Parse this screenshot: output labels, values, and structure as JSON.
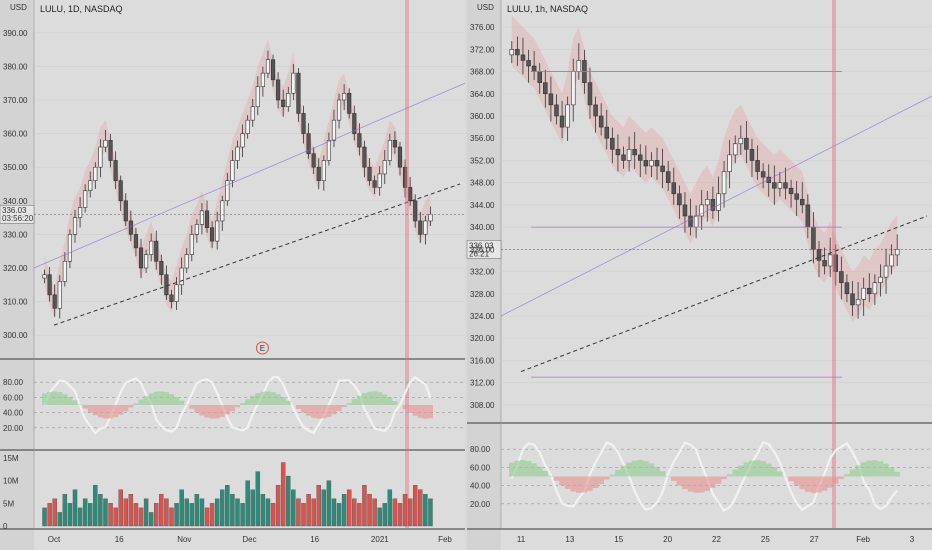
{
  "panes": [
    {
      "id": "left",
      "title": "LULU, 1D, NASDAQ",
      "currency": "USD",
      "price_tag": "336.03",
      "countdown": "03:56:20",
      "price_axis": {
        "min": 295,
        "max": 395,
        "labels": [
          "390.00",
          "380.00",
          "370.00",
          "360.00",
          "350.00",
          "340.00",
          "330.00",
          "320.00",
          "310.00",
          "300.00"
        ],
        "values": [
          390,
          380,
          370,
          360,
          350,
          340,
          330,
          320,
          310,
          300
        ]
      },
      "osc_axis": {
        "labels": [
          "80.00",
          "60.00",
          "40.00",
          "20.00"
        ],
        "values": [
          80,
          60,
          40,
          20
        ]
      },
      "vol_axis": {
        "labels": [
          "15M",
          "10M",
          "5M",
          "0"
        ],
        "values": [
          15,
          10,
          5,
          0
        ]
      },
      "time_labels": [
        "Oct",
        "16",
        "Nov",
        "Dec",
        "16",
        "2021",
        "Feb"
      ],
      "event_marker": "E"
    },
    {
      "id": "right",
      "title": "LULU, 1h, NASDAQ",
      "currency": "USD",
      "price_tag": "336.03",
      "countdown": "26:21",
      "price_axis": {
        "min": 306,
        "max": 378,
        "labels": [
          "376.00",
          "372.00",
          "368.00",
          "364.00",
          "360.00",
          "356.00",
          "352.00",
          "348.00",
          "344.00",
          "340.00",
          "336.00",
          "332.00",
          "328.00",
          "324.00",
          "320.00",
          "316.00",
          "312.00",
          "308.00"
        ],
        "values": [
          376,
          372,
          368,
          364,
          360,
          356,
          352,
          348,
          344,
          340,
          336,
          332,
          328,
          324,
          320,
          316,
          312,
          308
        ]
      },
      "osc_axis": {
        "labels": [
          "80.00",
          "60.00",
          "40.00",
          "20.00"
        ],
        "values": [
          80,
          60,
          40,
          20
        ]
      },
      "time_labels": [
        "11",
        "13",
        "15",
        "20",
        "22",
        "25",
        "27",
        "Feb",
        "3"
      ]
    }
  ],
  "chart_data": [
    {
      "type": "candlestick",
      "title": "LULU, 1D, NASDAQ",
      "series": [
        {
          "name": "close",
          "values": [
            318,
            312,
            308,
            316,
            322,
            330,
            335,
            338,
            343,
            346,
            350,
            356,
            358,
            352,
            346,
            340,
            334,
            330,
            326,
            320,
            324,
            328,
            322,
            318,
            312,
            310,
            315,
            320,
            324,
            330,
            333,
            337,
            332,
            328,
            334,
            340,
            346,
            352,
            356,
            360,
            364,
            368,
            374,
            378,
            382,
            376,
            370,
            368,
            372,
            378,
            366,
            360,
            354,
            350,
            346,
            352,
            358,
            364,
            370,
            372,
            366,
            360,
            356,
            350,
            346,
            344,
            348,
            352,
            358,
            356,
            350,
            344,
            340,
            334,
            330,
            334,
            336
          ]
        }
      ],
      "ylim": [
        295,
        395
      ],
      "volume_m": [
        4,
        5,
        6,
        3,
        7,
        5,
        8,
        4,
        6,
        5,
        9,
        7,
        6,
        5,
        4,
        8,
        6,
        7,
        5,
        4,
        6,
        3,
        5,
        7,
        6,
        4,
        5,
        8,
        6,
        5,
        7,
        6,
        4,
        5,
        6,
        8,
        9,
        7,
        6,
        5,
        10,
        8,
        12,
        7,
        6,
        5,
        9,
        14,
        11,
        8,
        6,
        5,
        7,
        6,
        9,
        8,
        10,
        6,
        5,
        7,
        8,
        6,
        5,
        9,
        7,
        6,
        4,
        5,
        8,
        6,
        5,
        7,
        6,
        9,
        8,
        7,
        6
      ]
    },
    {
      "type": "candlestick",
      "title": "LULU, 1h, NASDAQ",
      "series": [
        {
          "name": "close",
          "values": [
            372,
            371,
            370,
            369,
            368,
            366,
            364,
            362,
            360,
            358,
            362,
            368,
            370,
            366,
            362,
            360,
            358,
            356,
            354,
            353,
            352,
            354,
            353,
            352,
            351,
            352,
            351,
            350,
            348,
            346,
            344,
            342,
            340,
            342,
            344,
            345,
            343,
            346,
            350,
            353,
            355,
            356,
            354,
            352,
            350,
            349,
            348,
            347,
            348,
            347,
            346,
            345,
            344,
            340,
            336,
            334,
            333,
            335,
            332,
            330,
            328,
            326,
            327,
            329,
            328,
            330,
            331,
            333,
            335,
            336
          ]
        }
      ],
      "ylim": [
        306,
        378
      ],
      "annotation_lines": [
        368,
        340,
        313
      ]
    }
  ]
}
